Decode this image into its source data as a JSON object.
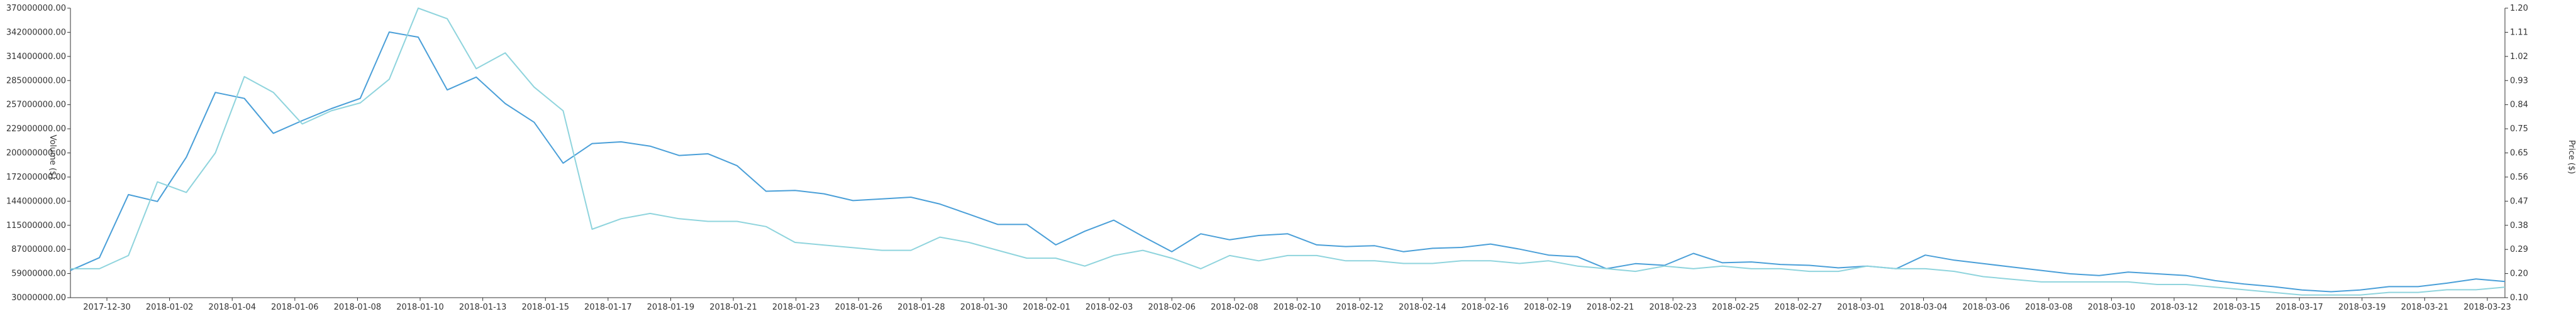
{
  "chart_data": {
    "type": "line",
    "xlabel": "",
    "ylabel_left": "Volume ($)",
    "ylabel_right": "Price ($)",
    "ylim_left": [
      30000000,
      370000000
    ],
    "ylim_right": [
      0.1,
      1.2
    ],
    "grid": false,
    "y_left_ticks": [
      "30000000.00",
      "59000000.00",
      "87000000.00",
      "115000000.00",
      "144000000.00",
      "172000000.00",
      "200000000.00",
      "229000000.00",
      "257000000.00",
      "285000000.00",
      "314000000.00",
      "342000000.00",
      "370000000.00"
    ],
    "y_right_ticks": [
      "0.10",
      "0.20",
      "0.29",
      "0.38",
      "0.47",
      "0.56",
      "0.65",
      "0.75",
      "0.84",
      "0.93",
      "1.02",
      "1.11",
      "1.20"
    ],
    "x_ticks": [
      "2017-12-30",
      "2018-01-02",
      "2018-01-04",
      "2018-01-06",
      "2018-01-08",
      "2018-01-10",
      "2018-01-13",
      "2018-01-15",
      "2018-01-17",
      "2018-01-19",
      "2018-01-21",
      "2018-01-23",
      "2018-01-26",
      "2018-01-28",
      "2018-01-30",
      "2018-02-01",
      "2018-02-03",
      "2018-02-06",
      "2018-02-08",
      "2018-02-10",
      "2018-02-12",
      "2018-02-14",
      "2018-02-16",
      "2018-02-19",
      "2018-02-21",
      "2018-02-23",
      "2018-02-25",
      "2018-02-27",
      "2018-03-01",
      "2018-03-04",
      "2018-03-06",
      "2018-03-08",
      "2018-03-10",
      "2018-03-12",
      "2018-03-15",
      "2018-03-17",
      "2018-03-19",
      "2018-03-21",
      "2018-03-23"
    ],
    "series": [
      {
        "name": "",
        "axis": "left",
        "color": "#4a9fd8",
        "values": [
          62000000,
          77000000,
          151000000,
          143000000,
          195000000,
          271000000,
          264000000,
          223000000,
          238000000,
          252000000,
          264000000,
          342000000,
          336000000,
          274000000,
          289000000,
          258000000,
          236000000,
          188000000,
          211000000,
          213000000,
          208000000,
          197000000,
          199000000,
          185000000,
          155000000,
          156000000,
          152000000,
          144000000,
          146000000,
          148000000,
          140000000,
          128000000,
          116000000,
          116000000,
          92000000,
          108000000,
          121000000,
          102000000,
          84000000,
          105000000,
          98000000,
          103000000,
          105000000,
          92000000,
          90000000,
          91000000,
          84000000,
          88000000,
          89000000,
          93000000,
          87000000,
          80000000,
          78000000,
          64000000,
          70000000,
          68000000,
          82000000,
          71000000,
          72000000,
          69000000,
          68000000,
          65000000,
          67000000,
          64000000,
          80000000,
          74000000,
          70000000,
          66000000,
          62000000,
          58000000,
          56000000,
          60000000,
          58000000,
          56000000,
          50000000,
          46000000,
          43000000,
          39000000,
          37000000,
          39000000,
          43000000,
          43000000,
          47000000,
          52000000,
          49000000
        ]
      },
      {
        "name": "",
        "axis": "right",
        "color": "#8fd4dd",
        "values": [
          0.21,
          0.21,
          0.26,
          0.54,
          0.5,
          0.65,
          0.94,
          0.88,
          0.76,
          0.81,
          0.84,
          0.93,
          1.2,
          1.16,
          0.97,
          1.03,
          0.9,
          0.81,
          0.36,
          0.4,
          0.42,
          0.4,
          0.39,
          0.39,
          0.37,
          0.31,
          0.3,
          0.29,
          0.28,
          0.28,
          0.33,
          0.31,
          0.28,
          0.25,
          0.25,
          0.22,
          0.26,
          0.28,
          0.25,
          0.21,
          0.26,
          0.24,
          0.26,
          0.26,
          0.24,
          0.24,
          0.23,
          0.23,
          0.24,
          0.24,
          0.23,
          0.24,
          0.22,
          0.21,
          0.2,
          0.22,
          0.21,
          0.22,
          0.21,
          0.21,
          0.2,
          0.2,
          0.22,
          0.21,
          0.21,
          0.2,
          0.18,
          0.17,
          0.16,
          0.16,
          0.16,
          0.16,
          0.15,
          0.15,
          0.14,
          0.13,
          0.12,
          0.11,
          0.11,
          0.11,
          0.12,
          0.12,
          0.13,
          0.13,
          0.14
        ]
      }
    ]
  }
}
